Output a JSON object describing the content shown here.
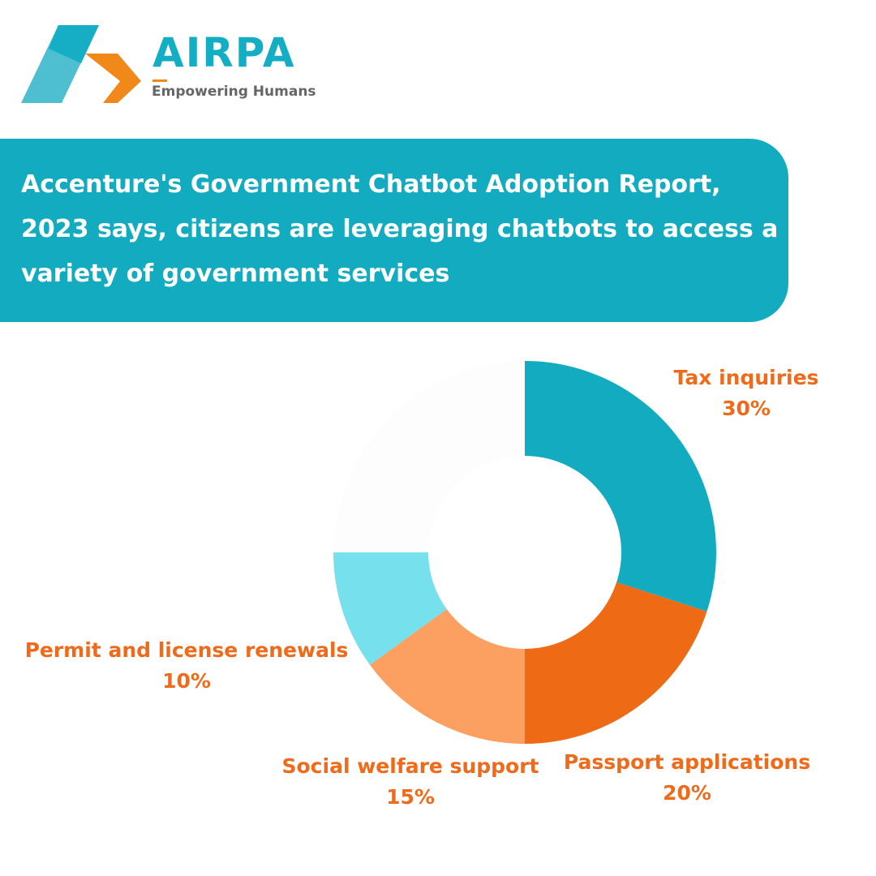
{
  "logo": {
    "brand": "AIRPA",
    "tagline": "Empowering Humans",
    "colors": {
      "teal": "#13aec3",
      "orange": "#f0891a"
    }
  },
  "banner": {
    "text": "Accenture's Government Chatbot Adoption Report, 2023 says, citizens are leveraging chatbots to access a variety of government services",
    "color": "#12abc0"
  },
  "chart_data": {
    "type": "pie",
    "variant": "donut",
    "title": "",
    "start_angle": "top, clockwise",
    "legend": "none (direct labels)",
    "categories": [
      "Tax inquiries",
      "Passport applications",
      "Social welfare support",
      "Permit and license renewals",
      ""
    ],
    "values": [
      30,
      20,
      15,
      10,
      25
    ],
    "labels": [
      "30%",
      "20%",
      "15%",
      "10%",
      ""
    ],
    "colors": [
      "#12abc0",
      "#ef6a15",
      "#fba060",
      "#76e0ec",
      "#fdfdfd"
    ],
    "label_color": "#ef6a1a"
  }
}
